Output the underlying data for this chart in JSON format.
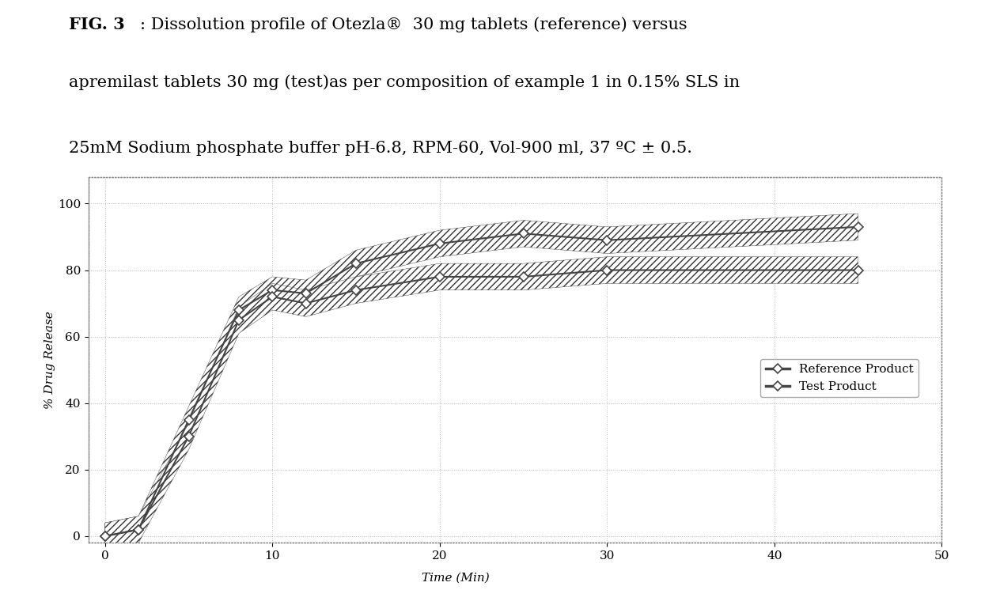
{
  "title_line1_bold": "FIG. 3",
  "title_line1_normal": ": Dissolution profile of Otezla®  30 mg tablets (reference) versus",
  "title_line2": "apremilast tablets 30 mg (test)as per composition of example 1 in 0.15% SLS in",
  "title_line3": "25mM Sodium phosphate buffer pH-6.8, RPM-60, Vol-900 ml, 37 ºC ± 0.5.",
  "xlabel": "Time (Min)",
  "ylabel": "% Drug Release",
  "xlim": [
    -1,
    50
  ],
  "ylim": [
    -2,
    108
  ],
  "xticks": [
    0,
    10,
    20,
    30,
    40,
    50
  ],
  "yticks": [
    0,
    20,
    40,
    60,
    80,
    100
  ],
  "reference_x": [
    0,
    2,
    5,
    8,
    10,
    12,
    15,
    20,
    25,
    30,
    45
  ],
  "reference_y": [
    0,
    2,
    35,
    68,
    74,
    73,
    82,
    88,
    91,
    89,
    93
  ],
  "test_x": [
    0,
    2,
    5,
    8,
    10,
    12,
    15,
    20,
    25,
    30,
    45
  ],
  "test_y": [
    0,
    2,
    30,
    65,
    72,
    70,
    74,
    78,
    78,
    80,
    80
  ],
  "ref_label": "Reference Product",
  "test_label": "Test Product",
  "line_color": "#444444",
  "bg_color": "#ffffff",
  "plot_bg": "#ffffff",
  "hatch_lw": 3,
  "marker": "D",
  "linewidth": 1.5,
  "markersize": 6,
  "title_fontsize": 15,
  "axis_label_fontsize": 11,
  "tick_fontsize": 11,
  "legend_fontsize": 11,
  "xlabel_x_offset": 0.43
}
